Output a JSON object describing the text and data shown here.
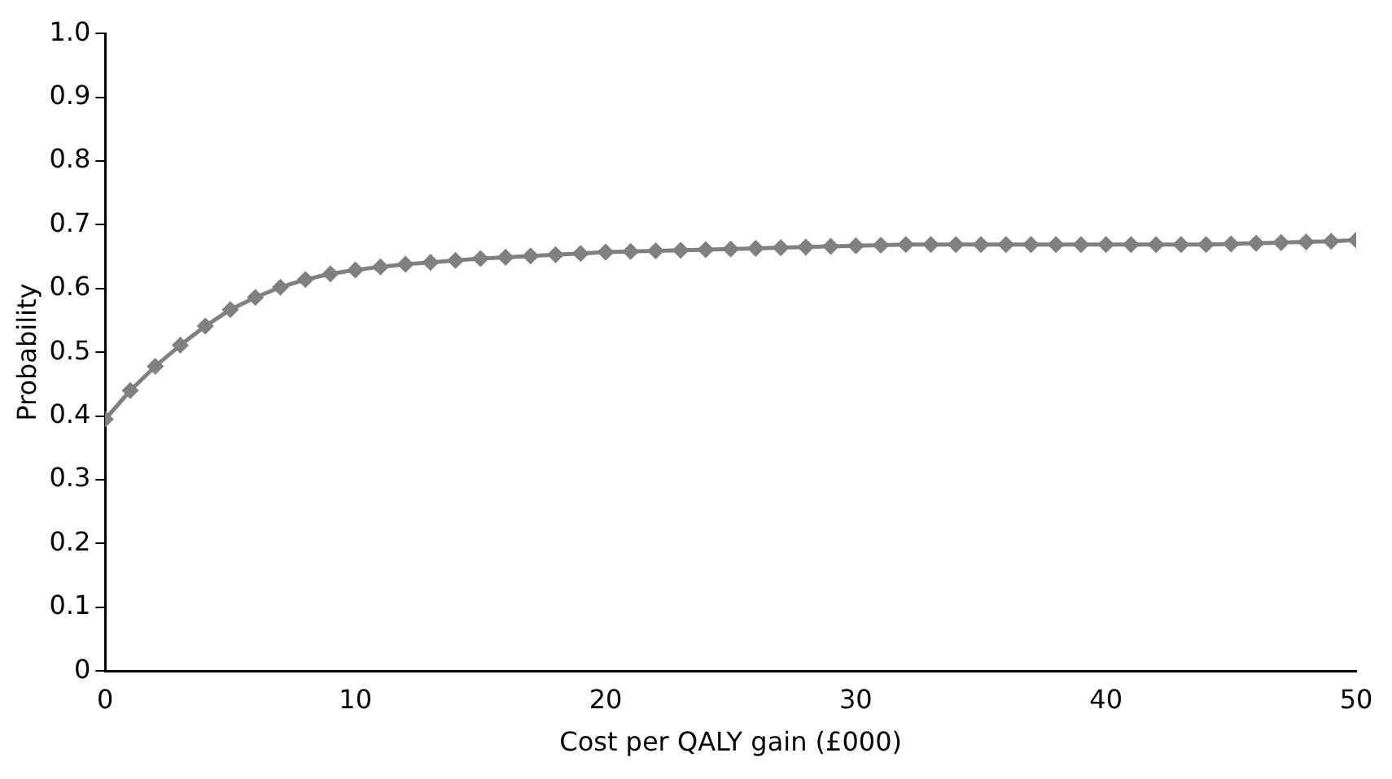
{
  "chart_data": {
    "type": "line",
    "xlabel": "Cost per QALY gain (£000)",
    "ylabel": "Probability",
    "x": [
      0,
      1,
      2,
      3,
      4,
      5,
      6,
      7,
      8,
      9,
      10,
      11,
      12,
      13,
      14,
      15,
      16,
      17,
      18,
      19,
      20,
      21,
      22,
      23,
      24,
      25,
      26,
      27,
      28,
      29,
      30,
      31,
      32,
      33,
      34,
      35,
      36,
      37,
      38,
      39,
      40,
      41,
      42,
      43,
      44,
      45,
      46,
      47,
      48,
      49,
      50
    ],
    "series": [
      {
        "color": "#808080",
        "values": [
          0.395,
          0.44,
          0.478,
          0.511,
          0.541,
          0.567,
          0.586,
          0.602,
          0.614,
          0.623,
          0.629,
          0.634,
          0.638,
          0.641,
          0.644,
          0.647,
          0.649,
          0.651,
          0.653,
          0.655,
          0.657,
          0.658,
          0.659,
          0.66,
          0.661,
          0.662,
          0.663,
          0.664,
          0.665,
          0.666,
          0.667,
          0.668,
          0.669,
          0.669,
          0.669,
          0.669,
          0.669,
          0.669,
          0.669,
          0.669,
          0.669,
          0.669,
          0.669,
          0.669,
          0.669,
          0.67,
          0.671,
          0.672,
          0.673,
          0.674,
          0.676
        ]
      }
    ],
    "xlim": [
      0,
      50
    ],
    "xticks": [
      0,
      10,
      20,
      30,
      40,
      50
    ],
    "ylim": [
      0,
      1
    ],
    "yticks": [
      0,
      0.1,
      0.2,
      0.3,
      0.4,
      0.5,
      0.6,
      0.7,
      0.8,
      0.9,
      {
        "value": 1,
        "label": "1.0"
      }
    ],
    "grid": false,
    "legend": false,
    "marker": "diamond",
    "line_style": "solid"
  }
}
